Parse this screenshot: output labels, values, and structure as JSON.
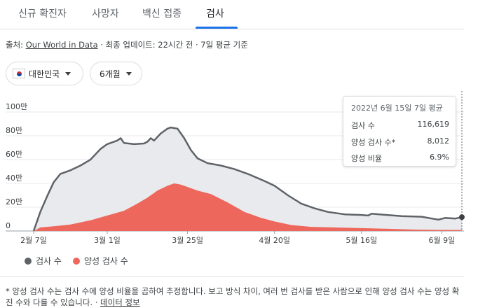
{
  "tabs": [
    {
      "label": "신규 확진자",
      "active": false
    },
    {
      "label": "사망자",
      "active": false
    },
    {
      "label": "백신 접종",
      "active": false
    },
    {
      "label": "검사",
      "active": true
    }
  ],
  "source": {
    "prefix": "출처: ",
    "link": "Our World in Data",
    "suffix": " · 최종 업데이트: 22시간 전 · 7일 평균 기준"
  },
  "filters": {
    "country": "대한민국",
    "country_flag_icon": "south-korea-flag-icon",
    "period": "6개월"
  },
  "tooltip": {
    "title": "2022년 6월 15일 7일 평균",
    "rows": [
      {
        "label": "검사 수",
        "value": "116,619"
      },
      {
        "label": "양성 검사 수*",
        "value": "8,012"
      },
      {
        "label": "양성 비율",
        "value": "6.9%"
      }
    ]
  },
  "legend": [
    {
      "label": "검사 수",
      "color": "#5f6368"
    },
    {
      "label": "양성 검사 수",
      "color": "#ee675c"
    }
  ],
  "footnote": {
    "text": "* 양성 검사 수는 검사 수에 양성 비율을 곱하여 추정합니다. 보고 방식 차이, 여러 번 검사를 받은 사람으로 인해 양성 검사 수는 양성 확진 수와 다를 수 있습니다.",
    "separator": " · ",
    "link": "데이터 정보"
  },
  "chart_data": {
    "type": "area",
    "x_start": "2022-02-07",
    "x_end": "2022-06-15",
    "ylim": [
      0,
      1000000
    ],
    "y_ticks": [
      0,
      200000,
      400000,
      600000,
      800000,
      1000000
    ],
    "y_tick_labels": [
      "0",
      "20만",
      "40만",
      "60만",
      "80만",
      "100만"
    ],
    "x_ticks": [
      "2022-02-07",
      "2022-03-01",
      "2022-03-25",
      "2022-04-20",
      "2022-05-16",
      "2022-06-09"
    ],
    "x_tick_labels": [
      "2월 7일",
      "3월 1일",
      "3월 25일",
      "4월 20일",
      "5월 16일",
      "6월 9일"
    ],
    "series": [
      {
        "name": "검사 수",
        "color": "#5f6368",
        "fill": "#e8eaed",
        "points": [
          [
            "2022-02-07",
            0
          ],
          [
            "2022-02-09",
            160000
          ],
          [
            "2022-02-11",
            290000
          ],
          [
            "2022-02-13",
            410000
          ],
          [
            "2022-02-15",
            480000
          ],
          [
            "2022-02-18",
            510000
          ],
          [
            "2022-02-21",
            550000
          ],
          [
            "2022-02-24",
            600000
          ],
          [
            "2022-02-27",
            690000
          ],
          [
            "2022-03-01",
            730000
          ],
          [
            "2022-03-04",
            760000
          ],
          [
            "2022-03-05",
            780000
          ],
          [
            "2022-03-06",
            740000
          ],
          [
            "2022-03-09",
            730000
          ],
          [
            "2022-03-12",
            735000
          ],
          [
            "2022-03-13",
            750000
          ],
          [
            "2022-03-14",
            780000
          ],
          [
            "2022-03-15",
            760000
          ],
          [
            "2022-03-17",
            820000
          ],
          [
            "2022-03-19",
            860000
          ],
          [
            "2022-03-20",
            870000
          ],
          [
            "2022-03-22",
            860000
          ],
          [
            "2022-03-24",
            780000
          ],
          [
            "2022-03-26",
            680000
          ],
          [
            "2022-03-28",
            610000
          ],
          [
            "2022-03-31",
            570000
          ],
          [
            "2022-04-04",
            550000
          ],
          [
            "2022-04-08",
            520000
          ],
          [
            "2022-04-12",
            480000
          ],
          [
            "2022-04-17",
            420000
          ],
          [
            "2022-04-20",
            380000
          ],
          [
            "2022-04-24",
            300000
          ],
          [
            "2022-04-28",
            230000
          ],
          [
            "2022-05-02",
            190000
          ],
          [
            "2022-05-06",
            160000
          ],
          [
            "2022-05-11",
            140000
          ],
          [
            "2022-05-16",
            135000
          ],
          [
            "2022-05-18",
            130000
          ],
          [
            "2022-05-19",
            145000
          ],
          [
            "2022-05-22",
            138000
          ],
          [
            "2022-05-28",
            125000
          ],
          [
            "2022-06-03",
            120000
          ],
          [
            "2022-06-06",
            105000
          ],
          [
            "2022-06-08",
            95000
          ],
          [
            "2022-06-10",
            110000
          ],
          [
            "2022-06-13",
            105000
          ],
          [
            "2022-06-15",
            116619
          ]
        ]
      },
      {
        "name": "양성 검사 수",
        "color": "#ee675c",
        "fill": "#ee675c",
        "points": [
          [
            "2022-02-07",
            0
          ],
          [
            "2022-02-09",
            30000
          ],
          [
            "2022-02-13",
            40000
          ],
          [
            "2022-02-18",
            55000
          ],
          [
            "2022-02-24",
            90000
          ],
          [
            "2022-03-01",
            130000
          ],
          [
            "2022-03-06",
            170000
          ],
          [
            "2022-03-10",
            230000
          ],
          [
            "2022-03-13",
            280000
          ],
          [
            "2022-03-16",
            340000
          ],
          [
            "2022-03-19",
            380000
          ],
          [
            "2022-03-21",
            400000
          ],
          [
            "2022-03-23",
            390000
          ],
          [
            "2022-03-25",
            370000
          ],
          [
            "2022-03-28",
            340000
          ],
          [
            "2022-04-01",
            310000
          ],
          [
            "2022-04-06",
            240000
          ],
          [
            "2022-04-11",
            160000
          ],
          [
            "2022-04-16",
            110000
          ],
          [
            "2022-04-20",
            80000
          ],
          [
            "2022-04-25",
            50000
          ],
          [
            "2022-05-01",
            35000
          ],
          [
            "2022-05-08",
            30000
          ],
          [
            "2022-05-16",
            24000
          ],
          [
            "2022-05-24",
            18000
          ],
          [
            "2022-06-01",
            12000
          ],
          [
            "2022-06-08",
            9000
          ],
          [
            "2022-06-15",
            8012
          ]
        ]
      }
    ],
    "grid": true
  }
}
